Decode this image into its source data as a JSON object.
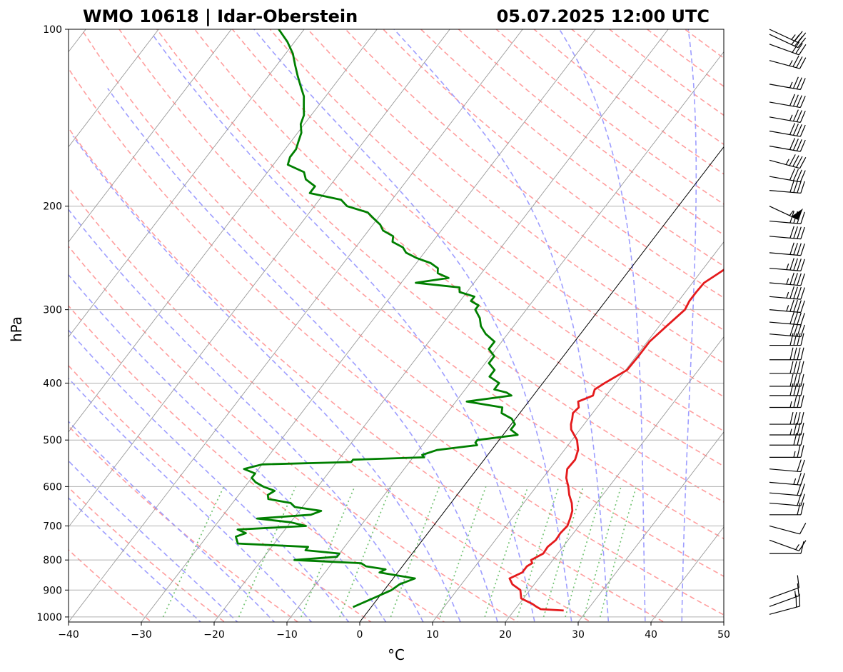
{
  "title_left": "WMO 10618 | Idar-Oberstein",
  "title_right": "05.07.2025 12:00 UTC",
  "chart_data": {
    "type": "line",
    "subtype": "skew-t log-p diagram",
    "xlabel": "°C",
    "ylabel": "hPa",
    "xlim": [
      -40,
      50
    ],
    "ylim": [
      1020,
      100
    ],
    "y_scale": "log",
    "x_ticks": [
      -40,
      -30,
      -20,
      -10,
      0,
      10,
      20,
      30,
      40,
      50
    ],
    "x_tick_labels": [
      "−40",
      "−30",
      "−20",
      "−10",
      "0",
      "10",
      "20",
      "30",
      "40",
      "50"
    ],
    "y_ticks": [
      1000,
      900,
      800,
      700,
      600,
      500,
      400,
      300,
      200,
      100
    ],
    "y_tick_labels": [
      "1000",
      "900",
      "800",
      "700",
      "600",
      "500",
      "400",
      "300",
      "200",
      "100"
    ],
    "grid": true,
    "colors": {
      "temperature": "#e41a1c",
      "dewpoint": "#007f00",
      "dry_adiabats": "#ff9e9e",
      "moist_adiabats": "#9e9eff",
      "mixing_ratio": "#5cb85c",
      "isotherms": "#999999"
    },
    "series": [
      {
        "key": "temperature",
        "p": [
          975,
          970,
          960,
          950,
          930,
          900,
          880,
          860,
          840,
          820,
          810,
          800,
          780,
          760,
          740,
          720,
          700,
          680,
          660,
          640,
          620,
          600,
          580,
          560,
          540,
          520,
          500,
          480,
          470,
          460,
          450,
          440,
          430,
          420,
          410,
          400,
          380,
          360,
          340,
          320,
          300,
          290,
          280,
          270,
          260,
          250,
          240,
          230,
          225,
          220,
          215,
          210,
          205,
          200,
          195,
          190,
          185,
          180,
          175,
          170,
          165,
          160,
          155,
          150,
          145,
          140,
          135,
          130,
          125,
          120,
          115,
          110,
          105,
          100
        ],
        "values": [
          26.8,
          23.5,
          22.6,
          21.8,
          19.7,
          18.7,
          17.0,
          16.0,
          17.1,
          17.1,
          17.5,
          17.0,
          18.0,
          17.9,
          18.3,
          18.2,
          18.4,
          18.0,
          17.5,
          16.6,
          15.4,
          14.4,
          13.2,
          12.4,
          12.5,
          11.9,
          10.7,
          8.8,
          8.2,
          7.8,
          7.3,
          7.5,
          6.8,
          8.2,
          7.8,
          8.5,
          10.2,
          10.3,
          10.3,
          11.0,
          11.8,
          11.5,
          11.5,
          11.6,
          12.6,
          13.6,
          14.8,
          15.8,
          15.9,
          16.8,
          17.9,
          18.7,
          19.5,
          20.3,
          21.4,
          22.4,
          23.1,
          24.0,
          25.7,
          26.4,
          27.5,
          28.2,
          28.5,
          29.0,
          30.5,
          31.0,
          31.5,
          32.0,
          33.0,
          33.8,
          34.5,
          36.0,
          37.0,
          38.5
        ]
      },
      {
        "key": "dewpoint",
        "p": [
          962,
          930,
          900,
          880,
          860,
          840,
          830,
          820,
          810,
          800,
          790,
          780,
          770,
          760,
          750,
          740,
          730,
          720,
          710,
          700,
          690,
          680,
          670,
          660,
          650,
          640,
          630,
          620,
          610,
          600,
          590,
          580,
          570,
          560,
          555,
          550,
          545,
          540,
          535,
          530,
          520,
          510,
          505,
          500,
          490,
          480,
          470,
          460,
          450,
          440,
          430,
          420,
          415,
          410,
          400,
          390,
          380,
          370,
          360,
          350,
          340,
          330,
          320,
          310,
          300,
          295,
          290,
          285,
          280,
          275,
          270,
          265,
          260,
          255,
          250,
          245,
          240,
          235,
          230,
          225,
          220,
          215,
          210,
          205,
          200,
          195,
          190,
          185,
          180,
          175,
          170,
          165,
          160,
          155,
          150,
          145,
          140,
          135,
          130,
          125,
          120,
          115,
          110,
          105,
          100
        ],
        "values": [
          -2.5,
          -0.7,
          1.0,
          1.5,
          3.0,
          -2.5,
          -2.0,
          -5.0,
          -6.0,
          -15.5,
          -10.0,
          -10.0,
          -15.0,
          -15.0,
          -25.0,
          -25.5,
          -26.0,
          -25.0,
          -26.5,
          -17.5,
          -20.0,
          -25.0,
          -18.0,
          -17.0,
          -21.0,
          -22.0,
          -25.5,
          -26.0,
          -25.5,
          -27.5,
          -29.0,
          -30.0,
          -30.0,
          -32.0,
          -31.0,
          -30.0,
          -18.0,
          -18.0,
          -8.5,
          -9.0,
          -7.5,
          -2.5,
          -3.0,
          -3.0,
          2.0,
          0.5,
          0.5,
          -0.5,
          -2.5,
          -3.0,
          -8.5,
          -3.0,
          -4.0,
          -6.0,
          -6.0,
          -8.0,
          -8.0,
          -9.5,
          -9.5,
          -11.0,
          -11.0,
          -13.0,
          -14.5,
          -15.5,
          -17.0,
          -17.0,
          -18.5,
          -18.5,
          -21.0,
          -21.5,
          -28.0,
          -24.0,
          -26.0,
          -26.5,
          -28.0,
          -30.5,
          -32.5,
          -33.5,
          -35.5,
          -36.0,
          -38.0,
          -39.0,
          -40.5,
          -42.0,
          -45.5,
          -47.0,
          -52.0,
          -52.0,
          -54.0,
          -55.0,
          -58.0,
          -58.5,
          -58.5,
          -59.0,
          -59.5,
          -60.5,
          -61.0,
          -62.0,
          -63.0,
          -64.5,
          -66.0,
          -67.5,
          -69.0,
          -71.0,
          -73.5
        ]
      }
    ],
    "wind_barbs": {
      "p": [
        990,
        960,
        930,
        780,
        740,
        700,
        670,
        640,
        615,
        590,
        560,
        535,
        510,
        490,
        470,
        440,
        420,
        405,
        385,
        365,
        345,
        330,
        315,
        300,
        285,
        270,
        255,
        240,
        225,
        212,
        200,
        188,
        178,
        167,
        158,
        149,
        141,
        133,
        124,
        113,
        106,
        102,
        100
      ],
      "speed_kt": [
        20,
        15,
        10,
        10,
        15,
        10,
        20,
        20,
        20,
        25,
        20,
        25,
        30,
        35,
        40,
        35,
        40,
        40,
        40,
        40,
        40,
        40,
        40,
        45,
        45,
        45,
        45,
        40,
        40,
        40,
        55,
        40,
        40,
        45,
        40,
        40,
        35,
        40,
        35,
        35,
        30,
        30,
        25
      ],
      "direction_deg": [
        255,
        250,
        250,
        270,
        290,
        285,
        270,
        275,
        275,
        275,
        275,
        270,
        270,
        270,
        270,
        270,
        270,
        270,
        270,
        270,
        270,
        275,
        275,
        275,
        275,
        275,
        275,
        275,
        275,
        275,
        295,
        275,
        280,
        285,
        280,
        280,
        280,
        280,
        280,
        285,
        290,
        295,
        295
      ]
    }
  }
}
